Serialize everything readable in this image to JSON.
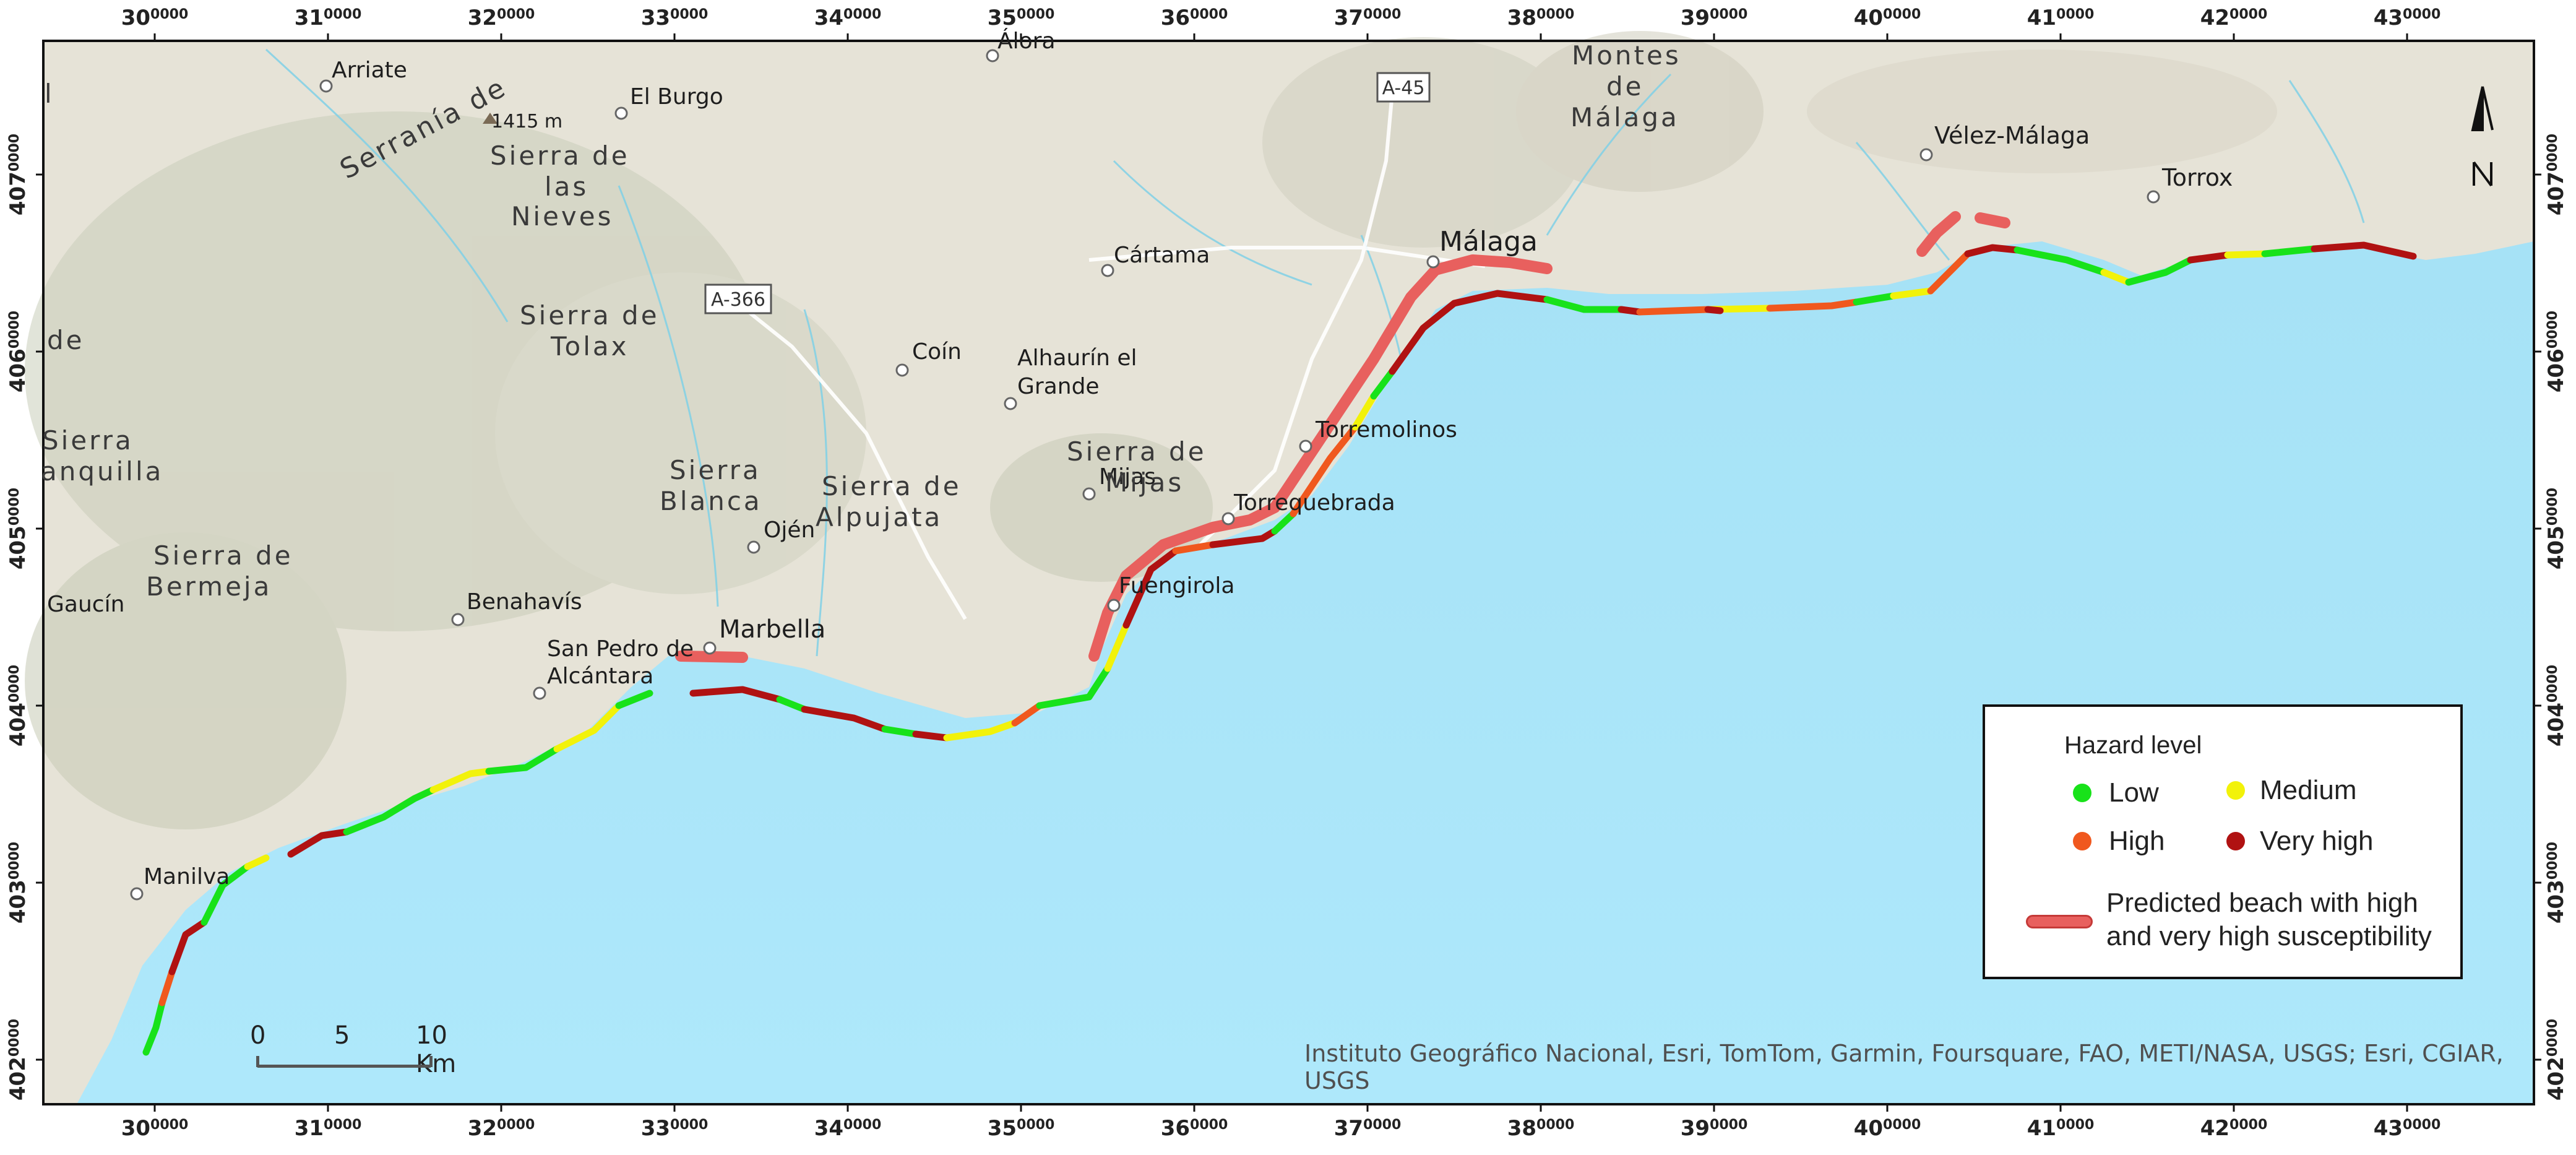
{
  "x_ticks": [
    {
      "main": "30",
      "sub": "0000"
    },
    {
      "main": "31",
      "sub": "0000"
    },
    {
      "main": "32",
      "sub": "0000"
    },
    {
      "main": "33",
      "sub": "0000"
    },
    {
      "main": "34",
      "sub": "0000"
    },
    {
      "main": "35",
      "sub": "0000"
    },
    {
      "main": "36",
      "sub": "0000"
    },
    {
      "main": "37",
      "sub": "0000"
    },
    {
      "main": "38",
      "sub": "0000"
    },
    {
      "main": "39",
      "sub": "0000"
    },
    {
      "main": "40",
      "sub": "0000"
    },
    {
      "main": "41",
      "sub": "0000"
    },
    {
      "main": "42",
      "sub": "0000"
    },
    {
      "main": "43",
      "sub": "0000"
    }
  ],
  "y_ticks": [
    {
      "main": "407",
      "sub": "0000"
    },
    {
      "main": "406",
      "sub": "0000"
    },
    {
      "main": "405",
      "sub": "0000"
    },
    {
      "main": "404",
      "sub": "0000"
    },
    {
      "main": "403",
      "sub": "0000"
    },
    {
      "main": "402",
      "sub": "0000"
    }
  ],
  "places": {
    "arriate": "Arriate",
    "el_burgo": "El Burgo",
    "alora": "Álora",
    "velez": "Vélez-Málaga",
    "torrox": "Torrox",
    "malaga": "Málaga",
    "cartama": "Cártama",
    "coin": "Coín",
    "alhaurin_1": "Alhaurín el",
    "alhaurin_2": "Grande",
    "torremolinos": "Torremolinos",
    "mijas": "Mijas",
    "torrequebrada": "Torrequebrada",
    "ojen": "Ojén",
    "marbella": "Marbella",
    "fuengirola": "Fuengirola",
    "benahavis": "Benahavís",
    "san_pedro_1": "San Pedro de",
    "san_pedro_2": "Alcántara",
    "gaucin": "Gaucín",
    "manilva": "Manilva",
    "elevation": "1415 m"
  },
  "mountains": {
    "serrania": "Serranía de",
    "nieves_1": "Sierra de",
    "nieves_2": "las",
    "nieves_3": "Nieves",
    "tolax_1": "Sierra de",
    "tolax_2": "Tolax",
    "montes_1": "Montes",
    "montes_2": "de",
    "montes_3": "Málaga",
    "mijas_1": "Sierra de",
    "mijas_2": "Mijas",
    "blanca_1": "Sierra",
    "blanca_2": "Blanca",
    "alpujata_1": "Sierra de",
    "alpujata_2": "Alpujata",
    "bermeja_1": "Sierra de",
    "bermeja_2": "Bermeja",
    "anquilla_1": "Sierra",
    "anquilla_2": "anquilla",
    "de_left": "de",
    "l_left": "l"
  },
  "roads": {
    "a45": "A-45",
    "a366": "A-366"
  },
  "legend": {
    "title": "Hazard level",
    "low": "Low",
    "medium": "Medium",
    "high": "High",
    "very_high": "Very high",
    "beach": "Predicted beach with high and very high susceptibility"
  },
  "hazard_colors": {
    "low": "#18e21a",
    "medium": "#f2f20a",
    "high": "#f0581e",
    "very_high": "#b01212",
    "beach": "#e8605e"
  },
  "scale_bar": {
    "l0": "0",
    "l5": "5",
    "l10": "10 Km"
  },
  "credits": "Instituto Geográfico Nacional, Esri, TomTom, Garmin, Foursquare, FAO, METI/NASA, USGS; Esri, CGIAR, USGS",
  "north_arrow": "north-arrow-icon"
}
